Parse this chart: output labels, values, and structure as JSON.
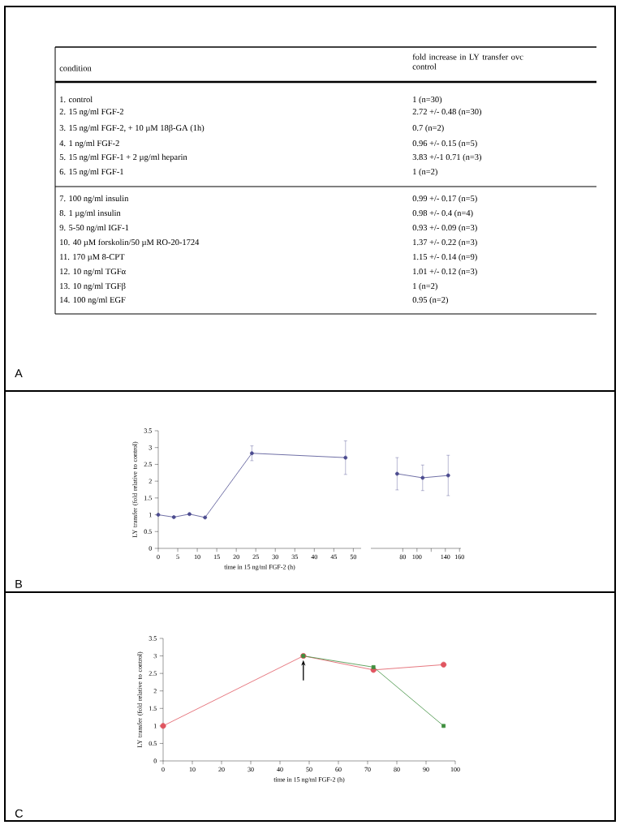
{
  "chart_data": [
    {
      "type": "other",
      "annotations": [
        "A",
        "condition",
        "fold increase in LY transfer ovc control"
      ],
      "categories": [
        "1.  control",
        "2.  15 ng/ml FGF-2",
        "3.  15 ng/ml FGF-2, + 10 µM 18β-GA (1h)",
        "4.  1 ng/ml FGF-2",
        "5.  15 ng/ml FGF-1 + 2 µg/ml  heparin",
        "6.  15 ng/ml FGF-1",
        "7.  100 ng/ml insulin",
        "8.  1 µg/ml  insulin",
        "9.  5-50 ng/ml IGF-1",
        "10.  40 µM  forskolin/50 µM RO-20-1724",
        "11.  170 µM 8-CPT",
        "12.  10 ng/ml TGFα",
        "13.  10 ng/ml TGFβ",
        "14.  100 ng/ml EGF"
      ],
      "value_labels": [
        "1 (n=30)",
        "2.72 +/- 0.48 (n=30)",
        "0.7 (n=2)",
        "0.96 +/- 0.15 (n=5)",
        "3.83 +/-1 0.71 (n=3)",
        "1 (n=2)",
        "0.99 +/- 0.17 (n=5)",
        "0.98 +/- 0.4 (n=4)",
        "0.93 +/- 0.09 (n=3)",
        "1.37 +/- 0.22 (n=3)",
        "1.15 +/- 0.14 (n=9)",
        "1.01 +/- 0.12 (n=3)",
        "1 (n=2)",
        "0.95 (n=2)"
      ]
    },
    {
      "type": "line",
      "annotations": [
        "B"
      ],
      "xlabel": "time in 15 ng/ml FGF-2 (h)",
      "ylabel": "LY transfer (fold relative to control)",
      "marker": "circle",
      "xlim": [
        0,
        52
      ],
      "ylim": [
        0,
        3.5
      ],
      "xticks": [
        0,
        5,
        10,
        15,
        20,
        25,
        30,
        35,
        40,
        45,
        50
      ],
      "yticks": [
        0,
        0.5,
        1,
        1.5,
        2,
        2.5,
        3,
        3.5
      ],
      "series": [
        {
          "color": "#4b4b8f",
          "x": [
            0,
            4,
            8,
            12,
            24,
            48
          ],
          "values": [
            1.0,
            0.93,
            1.02,
            0.92,
            2.83,
            2.7
          ],
          "errors": [
            null,
            null,
            null,
            null,
            0.22,
            0.5
          ]
        }
      ]
    },
    {
      "type": "line",
      "marker": "circle",
      "tick_labels": "x",
      "xlim": [
        35,
        162
      ],
      "ylim": [
        0,
        3.5
      ],
      "xticks": [
        80,
        100,
        {
          "value": 120,
          "label": null
        },
        140,
        160
      ],
      "series": [
        {
          "color": "#4b4b8f",
          "x": [
            72,
            108,
            144
          ],
          "values": [
            2.22,
            2.1,
            2.17
          ],
          "errors": [
            0.48,
            0.38,
            0.6
          ]
        }
      ]
    },
    {
      "type": "line",
      "annotations": [
        "C"
      ],
      "xlabel": "time in 15 ng/ml FGF-2 (h)",
      "ylabel": "LY transfer (fold relative to control)",
      "xlim": [
        0,
        100
      ],
      "ylim": [
        0,
        3.5
      ],
      "xticks": [
        0,
        10,
        20,
        30,
        40,
        50,
        60,
        70,
        80,
        90,
        100
      ],
      "yticks": [
        0,
        0.5,
        1,
        1.5,
        2,
        2.5,
        3,
        3.5
      ],
      "series": [
        {
          "color": "#e05560",
          "marker": "circle",
          "x": [
            0,
            48,
            72,
            96
          ],
          "values": [
            1.0,
            3.0,
            2.6,
            2.75
          ]
        },
        {
          "color": "#3f8f3f",
          "marker": "square",
          "x": [
            48,
            72,
            96
          ],
          "values": [
            3.0,
            2.68,
            1.0
          ]
        }
      ]
    }
  ]
}
